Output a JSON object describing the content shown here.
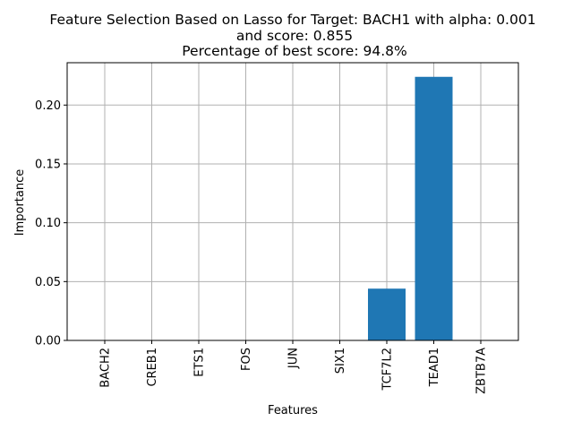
{
  "chart_data": {
    "type": "bar",
    "title_lines": [
      "Feature Selection Based on Lasso for Target: BACH1 with alpha: 0.001",
      "and score: 0.855",
      "Percentage of best score: 94.8%"
    ],
    "xlabel": "Features",
    "ylabel": "Importance",
    "categories": [
      "BACH2",
      "CREB1",
      "ETS1",
      "FOS",
      "JUN",
      "SIX1",
      "TCF7L2",
      "TEAD1",
      "ZBTB7A"
    ],
    "values": [
      0,
      0,
      0,
      0,
      0,
      0,
      0.044,
      0.224,
      0
    ],
    "ylim": [
      0,
      0.236
    ],
    "yticks": [
      "0.00",
      "0.05",
      "0.10",
      "0.15",
      "0.20"
    ],
    "grid": true,
    "bar_color": "#1f77b4"
  }
}
